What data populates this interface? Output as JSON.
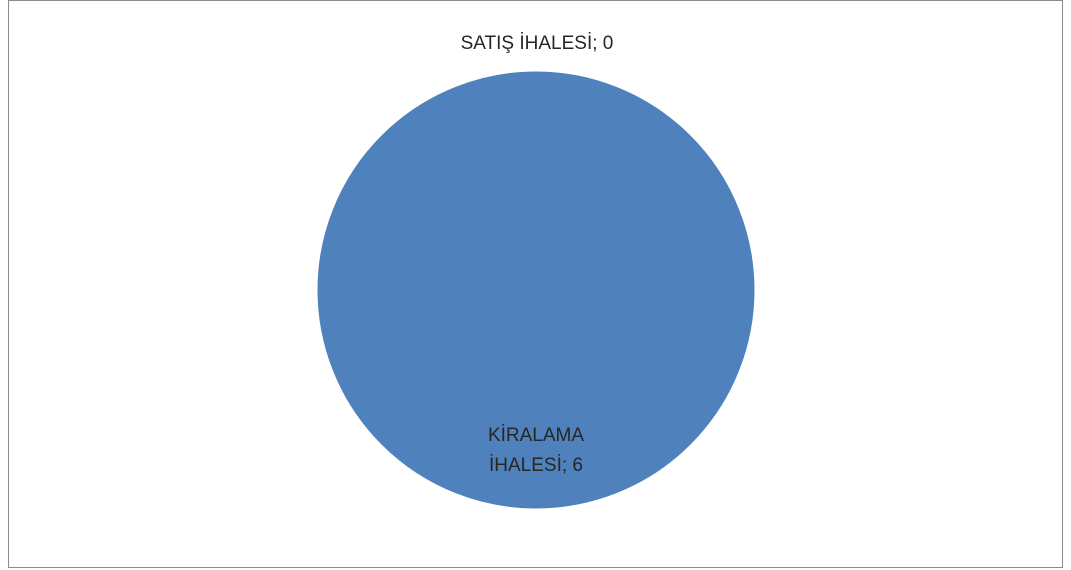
{
  "chart_data": {
    "type": "pie",
    "slices": [
      {
        "label": "SATIŞ İHALESİ",
        "value": 0,
        "data_label": "SATIŞ İHALESİ; 0",
        "color": "#4F81BD"
      },
      {
        "label": "KİRALAMA İHALESİ",
        "value": 6,
        "data_label_lines": [
          "KİRALAMA",
          "İHALESİ; 6"
        ],
        "color": "#4F81BD"
      }
    ],
    "legend": "none",
    "border_color": "#8C8C8C"
  }
}
